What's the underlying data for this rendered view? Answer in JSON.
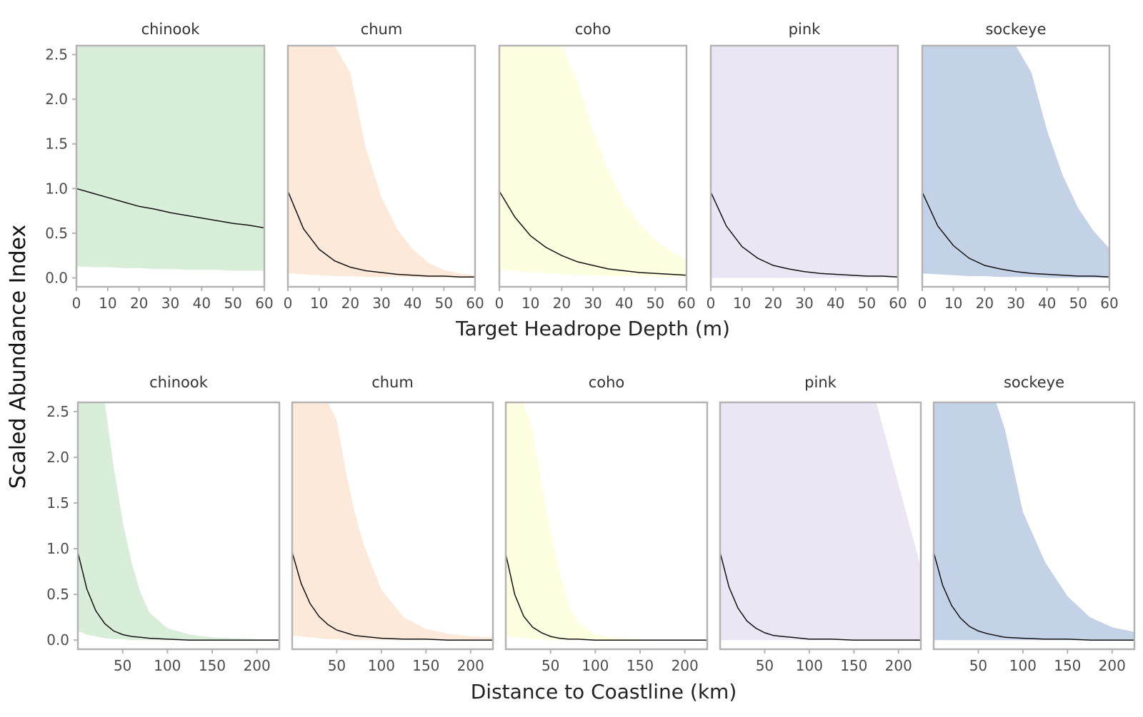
{
  "y_axis_label": "Scaled Abundance Index",
  "chart_data": [
    {
      "type": "area",
      "xlabel": "Target Headrope Depth (m)",
      "ylabel": "Scaled Abundance Index",
      "xlim": [
        0,
        60
      ],
      "ylim": [
        -0.1,
        2.6
      ],
      "x_ticks": [
        0,
        10,
        20,
        30,
        40,
        50,
        60
      ],
      "y_ticks": [
        0.0,
        0.5,
        1.0,
        1.5,
        2.0,
        2.5
      ],
      "y_tick_labels": [
        "0.0",
        "0.5",
        "1.0",
        "1.5",
        "2.0",
        "2.5"
      ],
      "x": [
        0,
        5,
        10,
        15,
        20,
        25,
        30,
        35,
        40,
        45,
        50,
        55,
        60
      ],
      "panels": [
        {
          "species": "chinook",
          "fill": "#d9eed9",
          "y": [
            1.0,
            0.95,
            0.9,
            0.85,
            0.8,
            0.77,
            0.73,
            0.7,
            0.67,
            0.64,
            0.61,
            0.59,
            0.56
          ],
          "lower": [
            0.13,
            0.12,
            0.12,
            0.11,
            0.11,
            0.1,
            0.1,
            0.09,
            0.09,
            0.09,
            0.08,
            0.08,
            0.08
          ],
          "upper": [
            2.6,
            2.6,
            2.6,
            2.6,
            2.6,
            2.6,
            2.6,
            2.6,
            2.6,
            2.6,
            2.6,
            2.6,
            2.6
          ]
        },
        {
          "species": "chum",
          "fill": "#fde9da",
          "y": [
            0.97,
            0.55,
            0.32,
            0.19,
            0.12,
            0.08,
            0.06,
            0.04,
            0.03,
            0.02,
            0.02,
            0.01,
            0.01
          ],
          "lower": [
            0.05,
            0.04,
            0.03,
            0.02,
            0.02,
            0.01,
            0.01,
            0.01,
            0.01,
            0.0,
            0.0,
            0.0,
            0.0
          ],
          "upper": [
            2.6,
            2.6,
            2.6,
            2.6,
            2.3,
            1.45,
            0.9,
            0.55,
            0.32,
            0.17,
            0.09,
            0.05,
            0.03
          ]
        },
        {
          "species": "coho",
          "fill": "#fefee0",
          "y": [
            0.97,
            0.68,
            0.47,
            0.34,
            0.25,
            0.18,
            0.14,
            0.1,
            0.08,
            0.06,
            0.05,
            0.04,
            0.03
          ],
          "lower": [
            0.09,
            0.08,
            0.06,
            0.05,
            0.04,
            0.03,
            0.03,
            0.02,
            0.02,
            0.02,
            0.01,
            0.01,
            0.01
          ],
          "upper": [
            2.6,
            2.6,
            2.6,
            2.6,
            2.6,
            2.2,
            1.65,
            1.2,
            0.85,
            0.6,
            0.42,
            0.3,
            0.2
          ]
        },
        {
          "species": "pink",
          "fill": "#ebe6f3",
          "y": [
            0.96,
            0.58,
            0.35,
            0.22,
            0.14,
            0.1,
            0.07,
            0.05,
            0.04,
            0.03,
            0.02,
            0.02,
            0.01
          ],
          "lower": [
            0.0,
            0.0,
            0.0,
            0.0,
            0.0,
            0.0,
            0.0,
            0.0,
            0.0,
            0.0,
            0.0,
            0.0,
            0.0
          ],
          "upper": [
            2.6,
            2.6,
            2.6,
            2.6,
            2.6,
            2.6,
            2.6,
            2.6,
            2.6,
            2.6,
            2.6,
            2.6,
            2.6
          ]
        },
        {
          "species": "sockeye",
          "fill": "#c4d2e7",
          "y": [
            0.96,
            0.58,
            0.36,
            0.22,
            0.14,
            0.1,
            0.07,
            0.05,
            0.04,
            0.03,
            0.02,
            0.02,
            0.01
          ],
          "lower": [
            0.05,
            0.04,
            0.03,
            0.02,
            0.02,
            0.01,
            0.01,
            0.01,
            0.0,
            0.0,
            0.0,
            0.0,
            0.0
          ],
          "upper": [
            2.6,
            2.6,
            2.6,
            2.6,
            2.6,
            2.6,
            2.6,
            2.3,
            1.65,
            1.15,
            0.78,
            0.52,
            0.33
          ]
        }
      ]
    },
    {
      "type": "area",
      "xlabel": "Distance to Coastline (km)",
      "ylabel": "Scaled Abundance Index",
      "xlim": [
        0,
        225
      ],
      "ylim": [
        -0.1,
        2.6
      ],
      "x_ticks": [
        50,
        100,
        150,
        200
      ],
      "y_ticks": [
        0.0,
        0.5,
        1.0,
        1.5,
        2.0,
        2.5
      ],
      "y_tick_labels": [
        "0.0",
        "0.5",
        "1.0",
        "1.5",
        "2.0",
        "2.5"
      ],
      "x": [
        0,
        10,
        20,
        30,
        40,
        50,
        60,
        70,
        80,
        100,
        125,
        150,
        175,
        200,
        225
      ],
      "panels": [
        {
          "species": "chinook",
          "fill": "#d9eed9",
          "y": [
            0.96,
            0.56,
            0.32,
            0.18,
            0.1,
            0.06,
            0.04,
            0.03,
            0.02,
            0.01,
            0.0,
            0.0,
            0.0,
            0.0,
            0.0
          ],
          "lower": [
            0.1,
            0.06,
            0.04,
            0.02,
            0.01,
            0.01,
            0.0,
            0.0,
            0.0,
            0.0,
            0.0,
            0.0,
            0.0,
            0.0,
            0.0
          ],
          "upper": [
            2.6,
            2.6,
            2.6,
            2.6,
            1.9,
            1.3,
            0.85,
            0.52,
            0.3,
            0.13,
            0.06,
            0.03,
            0.02,
            0.01,
            0.01
          ]
        },
        {
          "species": "chum",
          "fill": "#fde9da",
          "y": [
            0.96,
            0.62,
            0.4,
            0.26,
            0.17,
            0.11,
            0.08,
            0.05,
            0.04,
            0.02,
            0.01,
            0.01,
            0.0,
            0.0,
            0.0
          ],
          "lower": [
            0.05,
            0.04,
            0.03,
            0.02,
            0.01,
            0.01,
            0.0,
            0.0,
            0.0,
            0.0,
            0.0,
            0.0,
            0.0,
            0.0,
            0.0
          ],
          "upper": [
            2.6,
            2.6,
            2.6,
            2.6,
            2.6,
            2.4,
            1.85,
            1.4,
            1.05,
            0.55,
            0.25,
            0.12,
            0.07,
            0.04,
            0.03
          ]
        },
        {
          "species": "coho",
          "fill": "#fefee0",
          "y": [
            0.94,
            0.5,
            0.26,
            0.14,
            0.08,
            0.04,
            0.02,
            0.01,
            0.01,
            0.0,
            0.0,
            0.0,
            0.0,
            0.0,
            0.0
          ],
          "lower": [
            0.05,
            0.03,
            0.02,
            0.01,
            0.01,
            0.0,
            0.0,
            0.0,
            0.0,
            0.0,
            0.0,
            0.0,
            0.0,
            0.0,
            0.0
          ],
          "upper": [
            2.6,
            2.6,
            2.6,
            2.3,
            1.7,
            1.2,
            0.75,
            0.4,
            0.2,
            0.06,
            0.02,
            0.01,
            0.0,
            0.0,
            0.0
          ]
        },
        {
          "species": "pink",
          "fill": "#ebe6f3",
          "y": [
            0.96,
            0.58,
            0.35,
            0.21,
            0.13,
            0.08,
            0.05,
            0.04,
            0.03,
            0.01,
            0.01,
            0.0,
            0.0,
            0.0,
            0.0
          ],
          "lower": [
            0.0,
            0.0,
            0.0,
            0.0,
            0.0,
            0.0,
            0.0,
            0.0,
            0.0,
            0.0,
            0.0,
            0.0,
            0.0,
            0.0,
            0.0
          ],
          "upper": [
            2.6,
            2.6,
            2.6,
            2.6,
            2.6,
            2.6,
            2.6,
            2.6,
            2.6,
            2.6,
            2.6,
            2.6,
            2.6,
            1.7,
            0.8
          ]
        },
        {
          "species": "sockeye",
          "fill": "#c4d2e7",
          "y": [
            0.96,
            0.6,
            0.38,
            0.24,
            0.15,
            0.1,
            0.07,
            0.05,
            0.03,
            0.02,
            0.01,
            0.01,
            0.0,
            0.0,
            0.0
          ],
          "lower": [
            0.0,
            0.0,
            0.0,
            0.0,
            0.0,
            0.0,
            0.0,
            0.0,
            0.0,
            0.0,
            0.0,
            0.0,
            0.0,
            0.0,
            0.0
          ],
          "upper": [
            2.6,
            2.6,
            2.6,
            2.6,
            2.6,
            2.6,
            2.6,
            2.6,
            2.3,
            1.4,
            0.85,
            0.48,
            0.25,
            0.14,
            0.09
          ]
        }
      ]
    }
  ]
}
